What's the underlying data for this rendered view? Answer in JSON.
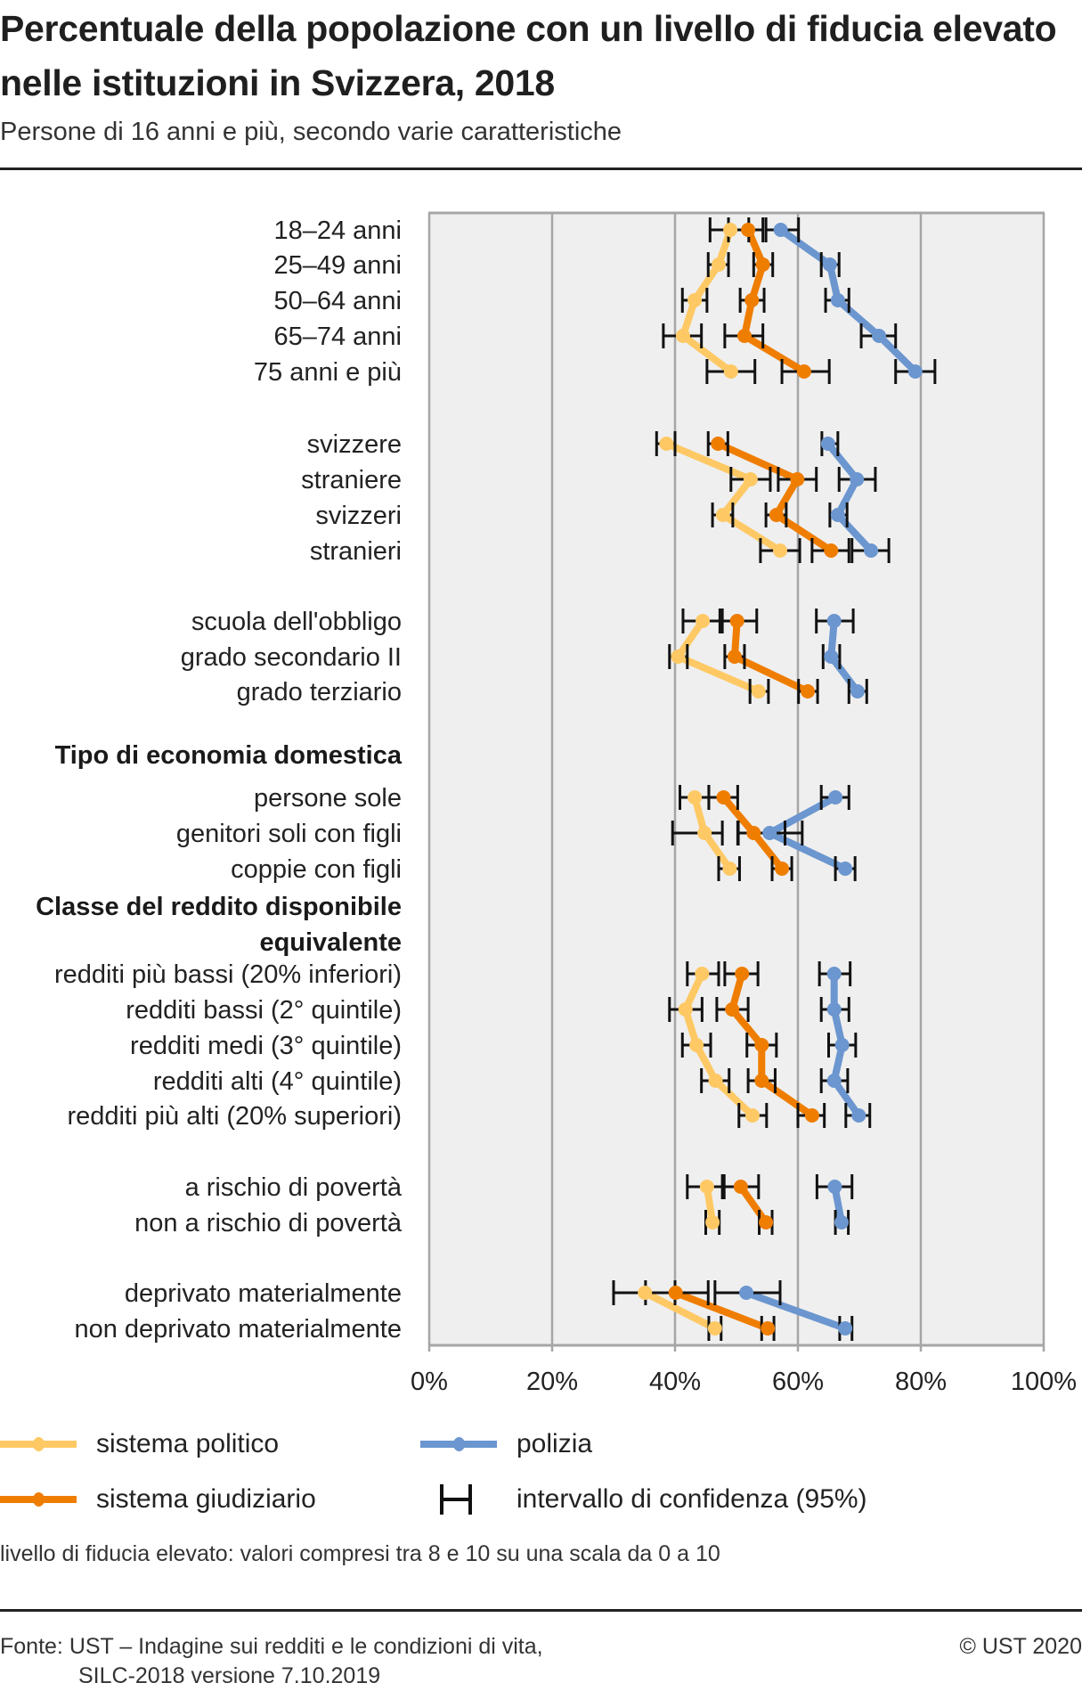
{
  "header": {
    "title": "Percentuale della popolazione con un livello di fiducia elevato nelle istituzioni in Svizzera, 2018",
    "subtitle": "Persone di 16 anni e più, secondo varie caratteristiche"
  },
  "legend": {
    "political": "sistema politico",
    "judicial": "sistema giudiziario",
    "police": "polizia",
    "ci": "intervallo di confidenza (95%)"
  },
  "footer": {
    "note": "livello di fiducia elevato: valori compresi tra 8 e 10 su una scala da 0 a 10",
    "source_line1": "Fonte:  UST – Indagine sui redditi e le condizioni di vita,",
    "source_line2": "SILC-2018 versione 7.10.2019",
    "copyright": "© UST 2020"
  },
  "colors": {
    "political": "#fec965",
    "judicial": "#ef7d00",
    "police": "#6b96cf",
    "ci": "#111111",
    "plot_bg": "#efefef",
    "grid": "#a6a6a6"
  },
  "chart_data": {
    "type": "line",
    "orientation": "horizontal-dot-line with error bars",
    "title": "Percentuale della popolazione con un livello di fiducia elevato nelle istituzioni in Svizzera, 2018",
    "subtitle": "Persone di 16 anni e più, secondo varie caratteristiche",
    "xlabel": "",
    "ylabel": "",
    "xlim": [
      0,
      100
    ],
    "x_ticks": [
      "0%",
      "20%",
      "40%",
      "60%",
      "80%",
      "100%"
    ],
    "x_tick_values": [
      0,
      20,
      40,
      60,
      80,
      100
    ],
    "grid": true,
    "legend_position": "bottom",
    "groups": [
      {
        "header": "",
        "rows": [
          0,
          1,
          2,
          3,
          4
        ]
      },
      {
        "header": "",
        "rows": [
          5,
          6,
          7,
          8
        ]
      },
      {
        "header": "",
        "rows": [
          9,
          10,
          11
        ]
      },
      {
        "header": "Tipo di economia domestica",
        "rows": [
          12,
          13,
          14
        ]
      },
      {
        "header": "Classe del reddito disponibile equivalente",
        "rows": [
          15,
          16,
          17,
          18,
          19
        ]
      },
      {
        "header": "",
        "rows": [
          20,
          21
        ]
      },
      {
        "header": "",
        "rows": [
          22,
          23
        ]
      }
    ],
    "categories": [
      "18–24 anni",
      "25–49 anni",
      "50–64 anni",
      "65–74 anni",
      "75 anni e più",
      "svizzere",
      "straniere",
      "svizzeri",
      "stranieri",
      "scuola dell'obbligo",
      "grado secondario II",
      "grado terziario",
      "persone sole",
      "genitori soli con figli",
      "coppie con figli",
      "redditi più bassi (20% inferiori)",
      "redditi bassi (2° quintile)",
      "redditi medi (3° quintile)",
      "redditi alti (4° quintile)",
      "redditi più alti (20% superiori)",
      "a rischio di povertà",
      "non a rischio di povertà",
      "deprivato materialmente",
      "non deprivato materialmente"
    ],
    "series": [
      {
        "name": "sistema politico",
        "color": "#fec965",
        "values": [
          49.0,
          47.1,
          43.2,
          41.3,
          49.1,
          38.6,
          52.3,
          47.8,
          57.1,
          44.5,
          40.5,
          53.6,
          43.2,
          44.8,
          48.9,
          44.4,
          41.7,
          43.5,
          46.6,
          52.6,
          45.2,
          46.1,
          35.1,
          46.5
        ],
        "ci_low": [
          45.7,
          45.4,
          41.2,
          38.1,
          45.2,
          37.0,
          49.1,
          46.1,
          53.9,
          41.3,
          39.1,
          52.2,
          40.8,
          39.6,
          47.1,
          42.0,
          39.1,
          41.2,
          44.3,
          50.4,
          42.0,
          45.0,
          30.0,
          45.5
        ],
        "ci_high": [
          52.0,
          48.7,
          45.2,
          44.3,
          53.0,
          40.0,
          55.5,
          49.4,
          60.3,
          47.3,
          42.0,
          55.2,
          45.5,
          47.7,
          50.5,
          47.1,
          44.4,
          45.8,
          48.8,
          54.9,
          47.7,
          47.2,
          40.0,
          47.5
        ]
      },
      {
        "name": "sistema giudiziario",
        "color": "#ef7d00",
        "values": [
          51.9,
          54.3,
          52.5,
          51.3,
          61.0,
          47.0,
          59.9,
          56.5,
          65.4,
          50.1,
          49.7,
          61.6,
          47.9,
          52.8,
          57.4,
          50.9,
          49.3,
          54.1,
          54.1,
          62.3,
          50.7,
          54.8,
          40.1,
          55.1
        ],
        "ci_low": [
          48.7,
          52.8,
          50.6,
          48.1,
          57.4,
          45.4,
          56.8,
          54.8,
          62.3,
          47.7,
          48.1,
          60.1,
          45.5,
          50.2,
          55.8,
          48.1,
          46.8,
          51.7,
          51.9,
          60.0,
          48.0,
          53.7,
          35.2,
          54.1
        ],
        "ci_high": [
          54.3,
          55.9,
          54.5,
          54.3,
          65.1,
          48.6,
          63.0,
          58.1,
          68.3,
          53.3,
          51.3,
          63.2,
          50.2,
          57.9,
          59.0,
          53.5,
          51.9,
          56.5,
          56.3,
          64.3,
          53.6,
          55.8,
          45.4,
          56.1
        ]
      },
      {
        "name": "polizia",
        "color": "#6b96cf",
        "values": [
          57.2,
          65.2,
          66.5,
          73.2,
          79.1,
          64.9,
          69.6,
          66.5,
          71.9,
          65.9,
          65.4,
          69.7,
          66.1,
          55.4,
          67.7,
          65.9,
          65.9,
          67.2,
          65.9,
          69.9,
          66.0,
          67.1,
          51.6,
          67.7
        ],
        "ci_low": [
          54.8,
          63.8,
          64.5,
          70.3,
          75.9,
          63.9,
          66.7,
          65.2,
          68.8,
          63.0,
          64.1,
          68.3,
          63.8,
          50.3,
          66.1,
          63.5,
          63.8,
          65.0,
          63.8,
          67.8,
          63.1,
          66.1,
          46.5,
          66.8
        ],
        "ci_high": [
          60.1,
          66.7,
          68.3,
          75.9,
          82.3,
          66.5,
          72.6,
          68.0,
          74.8,
          69.0,
          66.8,
          71.2,
          68.3,
          60.7,
          69.3,
          68.5,
          68.3,
          69.4,
          68.1,
          71.7,
          68.8,
          68.2,
          57.1,
          68.8
        ]
      }
    ]
  }
}
